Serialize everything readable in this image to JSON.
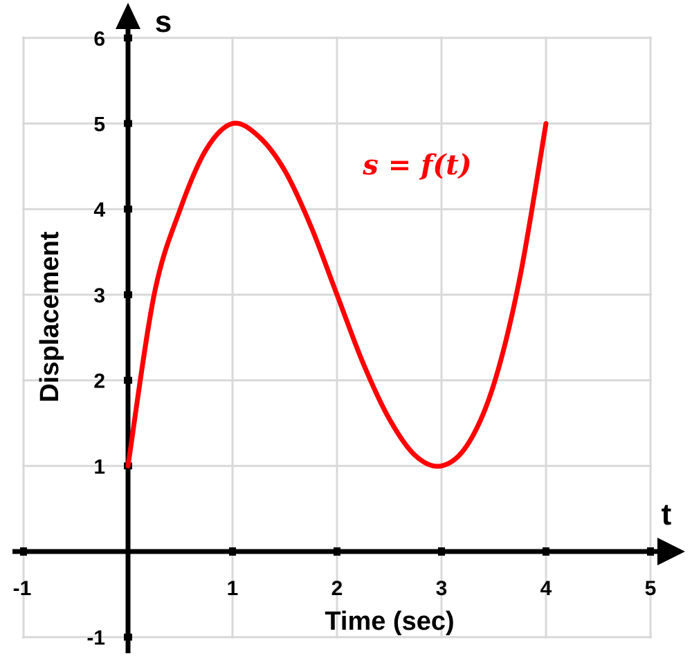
{
  "chart_data": {
    "type": "line",
    "title": "",
    "xlabel": "Time (sec)",
    "ylabel": "Displacement",
    "x_axis_name": "t",
    "y_axis_name": "s",
    "xlim": [
      -1,
      5
    ],
    "ylim": [
      -1,
      6
    ],
    "grid": true,
    "x_ticks": [
      -1,
      1,
      2,
      3,
      4,
      5
    ],
    "y_ticks": [
      -1,
      1,
      2,
      3,
      4,
      5,
      6
    ],
    "x_tick_labels": [
      "-1",
      "1",
      "2",
      "3",
      "4",
      "5"
    ],
    "y_tick_labels": [
      "-1",
      "1",
      "2",
      "3",
      "4",
      "5",
      "6"
    ],
    "series": [
      {
        "color": "#ff0000",
        "x": [
          0,
          0.25,
          0.5,
          0.75,
          1,
          1.25,
          1.5,
          1.75,
          2,
          2.25,
          2.5,
          2.75,
          3,
          3.25,
          3.5,
          3.75,
          4
        ],
        "y": [
          1,
          3.0,
          4.0,
          4.7,
          5,
          4.85,
          4.45,
          3.8,
          3.0,
          2.2,
          1.55,
          1.12,
          1,
          1.25,
          1.95,
          3.2,
          5
        ]
      }
    ],
    "annotations": [
      {
        "text": "s = f(t)",
        "color": "#ff0000"
      }
    ]
  }
}
